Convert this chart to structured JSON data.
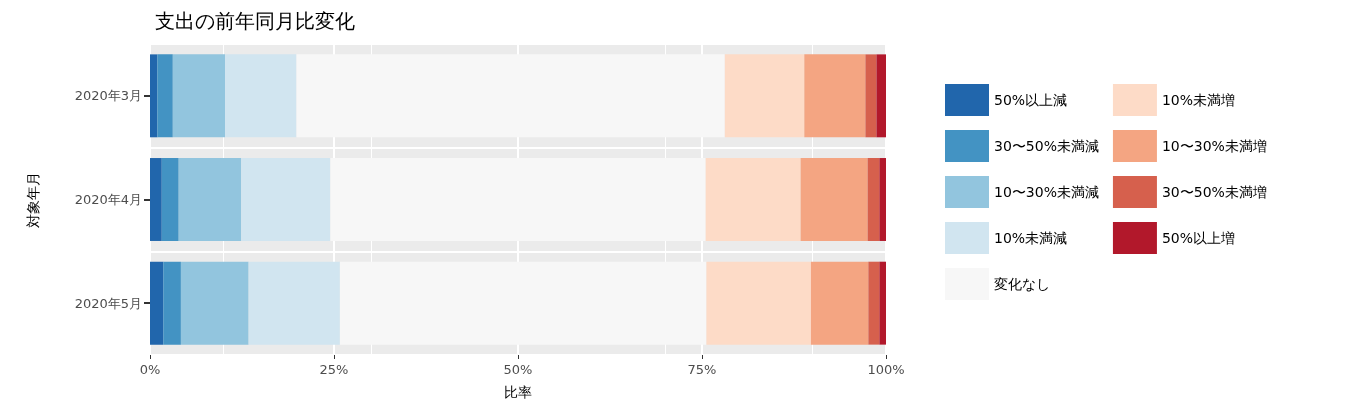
{
  "chart_data": {
    "type": "bar",
    "orientation": "horizontal",
    "stacked": true,
    "title": "支出の前年同月比変化",
    "xlabel": "比率",
    "ylabel": "対象年月",
    "categories": [
      "2020年3月",
      "2020年4月",
      "2020年5月"
    ],
    "series": [
      {
        "name": "50%以上減",
        "color": "#2166ac",
        "values": [
          1.0,
          1.6,
          1.8
        ]
      },
      {
        "name": "30〜50%未満減",
        "color": "#4393c3",
        "values": [
          2.1,
          2.3,
          2.4
        ]
      },
      {
        "name": "10〜30%未満減",
        "color": "#92c5de",
        "values": [
          7.1,
          8.5,
          9.2
        ]
      },
      {
        "name": "10%未満減",
        "color": "#d1e5f0",
        "values": [
          9.7,
          12.1,
          12.4
        ]
      },
      {
        "name": "変化なし",
        "color": "#f7f7f7",
        "values": [
          58.2,
          51.0,
          49.8
        ]
      },
      {
        "name": "10%未満増",
        "color": "#fddbc7",
        "values": [
          10.8,
          12.9,
          14.2
        ]
      },
      {
        "name": "10〜30%未満増",
        "color": "#f4a582",
        "values": [
          8.3,
          9.1,
          7.8
        ]
      },
      {
        "name": "30〜50%未満増",
        "color": "#d6604d",
        "values": [
          1.5,
          1.6,
          1.5
        ]
      },
      {
        "name": "50%以上増",
        "color": "#b2182b",
        "values": [
          1.3,
          0.9,
          0.9
        ]
      }
    ],
    "xlim": [
      0,
      100
    ],
    "xticks": [
      {
        "value": 0,
        "label": "0%"
      },
      {
        "value": 25,
        "label": "25%"
      },
      {
        "value": 50,
        "label": "50%"
      },
      {
        "value": 75,
        "label": "75%"
      },
      {
        "value": 100,
        "label": "100%"
      }
    ],
    "grid": true,
    "legend": "right"
  }
}
